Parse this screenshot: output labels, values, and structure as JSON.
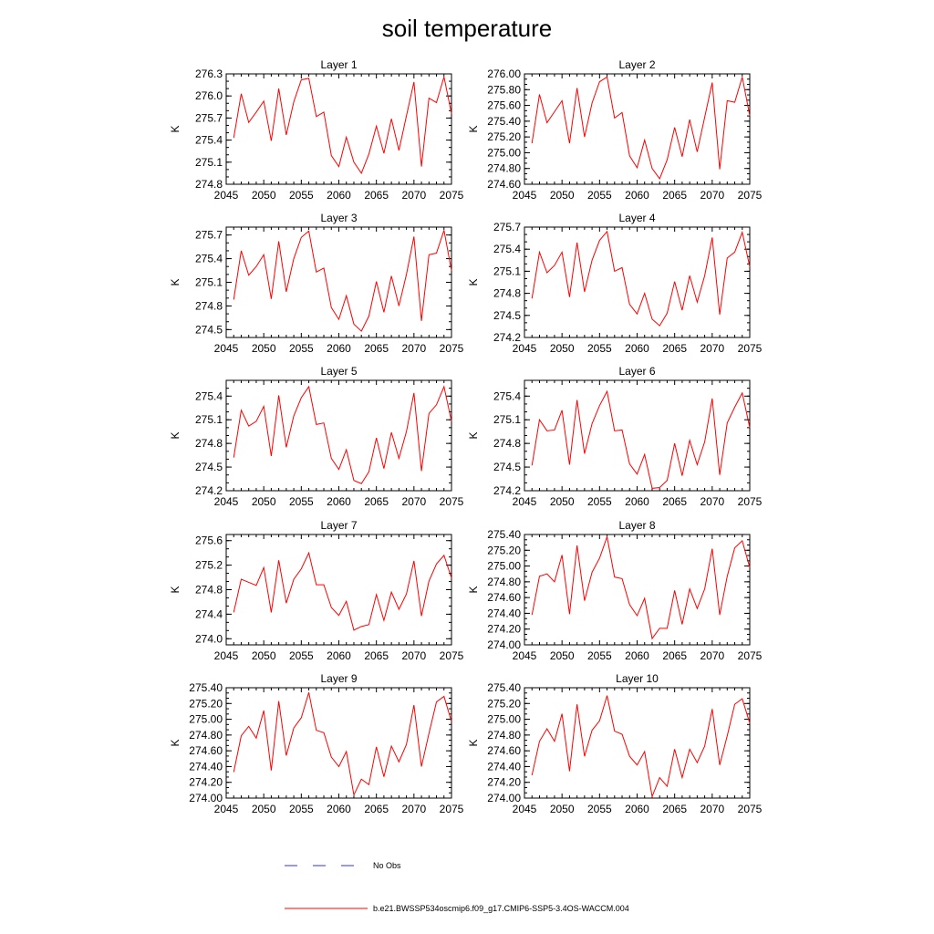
{
  "figure_title": "soil temperature",
  "legend": [
    {
      "label": "No Obs",
      "color": "#3333cc",
      "style": "dashed"
    },
    {
      "label": "b.e21.BWSSP534oscmip6.f09_g17.CMIP6-SSP5-3.4OS-WACCM.004",
      "color": "#ff0000",
      "style": "solid"
    }
  ],
  "chart_data": [
    {
      "type": "line",
      "title": "Layer 1",
      "ylabel": "K",
      "xlim": [
        2045,
        2075
      ],
      "ylim": [
        274.8,
        276.3
      ],
      "xticks": [
        2045,
        2050,
        2055,
        2060,
        2065,
        2070,
        2075
      ],
      "yticks": [
        274.8,
        275.1,
        275.4,
        275.7,
        276.0,
        276.3
      ],
      "ydecimals": 1,
      "x": [
        2046,
        2047,
        2048,
        2049,
        2050,
        2051,
        2052,
        2053,
        2054,
        2055,
        2056,
        2057,
        2058,
        2059,
        2060,
        2061,
        2062,
        2063,
        2064,
        2065,
        2066,
        2067,
        2068,
        2069,
        2070,
        2071,
        2072,
        2073,
        2074,
        2075
      ],
      "series": [
        {
          "values": [
            275.43,
            276.03,
            275.64,
            275.78,
            275.93,
            275.39,
            276.1,
            275.47,
            275.92,
            276.22,
            276.24,
            275.72,
            275.78,
            275.19,
            275.04,
            275.44,
            275.1,
            274.95,
            275.21,
            275.59,
            275.22,
            275.69,
            275.26,
            275.73,
            276.19,
            275.04,
            275.97,
            275.91,
            276.26,
            275.76
          ],
          "color": "#ff0000"
        }
      ]
    },
    {
      "type": "line",
      "title": "Layer 2",
      "ylabel": "K",
      "xlim": [
        2045,
        2075
      ],
      "ylim": [
        274.6,
        276.0
      ],
      "xticks": [
        2045,
        2050,
        2055,
        2060,
        2065,
        2070,
        2075
      ],
      "yticks": [
        274.6,
        274.8,
        275.0,
        275.2,
        275.4,
        275.6,
        275.8,
        276.0
      ],
      "ydecimals": 2,
      "x": [
        2046,
        2047,
        2048,
        2049,
        2050,
        2051,
        2052,
        2053,
        2054,
        2055,
        2056,
        2057,
        2058,
        2059,
        2060,
        2061,
        2062,
        2063,
        2064,
        2065,
        2066,
        2067,
        2068,
        2069,
        2070,
        2071,
        2072,
        2073,
        2074,
        2075
      ],
      "series": [
        {
          "values": [
            275.12,
            275.74,
            275.38,
            275.52,
            275.66,
            275.12,
            275.82,
            275.2,
            275.63,
            275.9,
            275.96,
            275.44,
            275.51,
            274.96,
            274.81,
            275.16,
            274.8,
            274.67,
            274.91,
            275.32,
            274.95,
            275.42,
            275.01,
            275.45,
            275.89,
            274.79,
            275.66,
            275.64,
            275.96,
            275.47
          ],
          "color": "#ff0000"
        }
      ]
    },
    {
      "type": "line",
      "title": "Layer 3",
      "ylabel": "K",
      "xlim": [
        2045,
        2075
      ],
      "ylim": [
        274.4,
        275.8
      ],
      "xticks": [
        2045,
        2050,
        2055,
        2060,
        2065,
        2070,
        2075
      ],
      "yticks": [
        274.5,
        274.8,
        275.1,
        275.4,
        275.7
      ],
      "ydecimals": 1,
      "x": [
        2046,
        2047,
        2048,
        2049,
        2050,
        2051,
        2052,
        2053,
        2054,
        2055,
        2056,
        2057,
        2058,
        2059,
        2060,
        2061,
        2062,
        2063,
        2064,
        2065,
        2066,
        2067,
        2068,
        2069,
        2070,
        2071,
        2072,
        2073,
        2074,
        2075
      ],
      "series": [
        {
          "values": [
            274.88,
            275.5,
            275.19,
            275.3,
            275.45,
            274.89,
            275.62,
            274.98,
            275.4,
            275.67,
            275.75,
            275.23,
            275.28,
            274.78,
            274.63,
            274.93,
            274.57,
            274.48,
            274.67,
            275.11,
            274.72,
            275.18,
            274.8,
            275.2,
            275.68,
            274.61,
            275.45,
            275.47,
            275.76,
            275.25
          ],
          "color": "#ff0000"
        }
      ]
    },
    {
      "type": "line",
      "title": "Layer 4",
      "ylabel": "K",
      "xlim": [
        2045,
        2075
      ],
      "ylim": [
        274.2,
        275.7
      ],
      "xticks": [
        2045,
        2050,
        2055,
        2060,
        2065,
        2070,
        2075
      ],
      "yticks": [
        274.2,
        274.5,
        274.8,
        275.1,
        275.4,
        275.7
      ],
      "ydecimals": 1,
      "x": [
        2046,
        2047,
        2048,
        2049,
        2050,
        2051,
        2052,
        2053,
        2054,
        2055,
        2056,
        2057,
        2058,
        2059,
        2060,
        2061,
        2062,
        2063,
        2064,
        2065,
        2066,
        2067,
        2068,
        2069,
        2070,
        2071,
        2072,
        2073,
        2074,
        2075
      ],
      "series": [
        {
          "values": [
            274.73,
            275.36,
            275.08,
            275.18,
            275.36,
            274.75,
            275.49,
            274.82,
            275.25,
            275.52,
            275.64,
            275.1,
            275.15,
            274.65,
            274.52,
            274.8,
            274.45,
            274.36,
            274.53,
            274.96,
            274.57,
            275.04,
            274.68,
            275.04,
            275.56,
            274.51,
            275.28,
            275.36,
            275.63,
            275.16
          ],
          "color": "#ff0000"
        }
      ]
    },
    {
      "type": "line",
      "title": "Layer 5",
      "ylabel": "K",
      "xlim": [
        2045,
        2075
      ],
      "ylim": [
        274.2,
        275.6
      ],
      "xticks": [
        2045,
        2050,
        2055,
        2060,
        2065,
        2070,
        2075
      ],
      "yticks": [
        274.2,
        274.5,
        274.8,
        275.1,
        275.4
      ],
      "ydecimals": 1,
      "x": [
        2046,
        2047,
        2048,
        2049,
        2050,
        2051,
        2052,
        2053,
        2054,
        2055,
        2056,
        2057,
        2058,
        2059,
        2060,
        2061,
        2062,
        2063,
        2064,
        2065,
        2066,
        2067,
        2068,
        2069,
        2070,
        2071,
        2072,
        2073,
        2074,
        2075
      ],
      "series": [
        {
          "values": [
            274.62,
            275.22,
            275.02,
            275.08,
            275.27,
            274.64,
            275.41,
            274.75,
            275.15,
            275.38,
            275.52,
            275.04,
            275.06,
            274.61,
            274.47,
            274.72,
            274.33,
            274.29,
            274.44,
            274.87,
            274.48,
            274.94,
            274.61,
            274.95,
            275.44,
            274.45,
            275.18,
            275.29,
            275.52,
            275.08
          ],
          "color": "#ff0000"
        }
      ]
    },
    {
      "type": "line",
      "title": "Layer 6",
      "ylabel": "K",
      "xlim": [
        2045,
        2075
      ],
      "ylim": [
        274.2,
        275.6
      ],
      "xticks": [
        2045,
        2050,
        2055,
        2060,
        2065,
        2070,
        2075
      ],
      "yticks": [
        274.2,
        274.5,
        274.8,
        275.1,
        275.4
      ],
      "ydecimals": 1,
      "x": [
        2046,
        2047,
        2048,
        2049,
        2050,
        2051,
        2052,
        2053,
        2054,
        2055,
        2056,
        2057,
        2058,
        2059,
        2060,
        2061,
        2062,
        2063,
        2064,
        2065,
        2066,
        2067,
        2068,
        2069,
        2070,
        2071,
        2072,
        2073,
        2074,
        2075
      ],
      "series": [
        {
          "values": [
            274.52,
            275.1,
            274.96,
            274.97,
            275.22,
            274.53,
            275.35,
            274.67,
            275.05,
            275.28,
            275.46,
            274.96,
            274.97,
            274.54,
            274.41,
            274.66,
            274.23,
            274.24,
            274.33,
            274.8,
            274.39,
            274.84,
            274.53,
            274.82,
            275.37,
            274.4,
            275.06,
            275.26,
            275.44,
            275.0
          ],
          "color": "#ff0000"
        }
      ]
    },
    {
      "type": "line",
      "title": "Layer 7",
      "ylabel": "K",
      "xlim": [
        2045,
        2075
      ],
      "ylim": [
        273.9,
        275.7
      ],
      "xticks": [
        2045,
        2050,
        2055,
        2060,
        2065,
        2070,
        2075
      ],
      "yticks": [
        274.0,
        274.4,
        274.8,
        275.2,
        275.6
      ],
      "ydecimals": 1,
      "x": [
        2046,
        2047,
        2048,
        2049,
        2050,
        2051,
        2052,
        2053,
        2054,
        2055,
        2056,
        2057,
        2058,
        2059,
        2060,
        2061,
        2062,
        2063,
        2064,
        2065,
        2066,
        2067,
        2068,
        2069,
        2070,
        2071,
        2072,
        2073,
        2074,
        2075
      ],
      "series": [
        {
          "values": [
            274.43,
            274.97,
            274.92,
            274.87,
            275.16,
            274.43,
            275.28,
            274.58,
            274.97,
            275.14,
            275.4,
            274.88,
            274.88,
            274.51,
            274.38,
            274.61,
            274.14,
            274.2,
            274.23,
            274.72,
            274.3,
            274.76,
            274.48,
            274.73,
            275.27,
            274.37,
            274.94,
            275.22,
            275.36,
            274.99
          ],
          "color": "#ff0000"
        }
      ]
    },
    {
      "type": "line",
      "title": "Layer 8",
      "ylabel": "K",
      "xlim": [
        2045,
        2075
      ],
      "ylim": [
        274.0,
        275.4
      ],
      "xticks": [
        2045,
        2050,
        2055,
        2060,
        2065,
        2070,
        2075
      ],
      "yticks": [
        274.0,
        274.2,
        274.4,
        274.6,
        274.8,
        275.0,
        275.2,
        275.4
      ],
      "ydecimals": 2,
      "x": [
        2046,
        2047,
        2048,
        2049,
        2050,
        2051,
        2052,
        2053,
        2054,
        2055,
        2056,
        2057,
        2058,
        2059,
        2060,
        2061,
        2062,
        2063,
        2064,
        2065,
        2066,
        2067,
        2068,
        2069,
        2070,
        2071,
        2072,
        2073,
        2074,
        2075
      ],
      "series": [
        {
          "values": [
            274.38,
            274.87,
            274.9,
            274.8,
            275.14,
            274.39,
            275.26,
            274.56,
            274.92,
            275.1,
            275.37,
            274.86,
            274.84,
            274.51,
            274.37,
            274.59,
            274.08,
            274.21,
            274.21,
            274.69,
            274.26,
            274.71,
            274.46,
            274.71,
            275.22,
            274.38,
            274.87,
            275.23,
            275.32,
            274.98
          ],
          "color": "#ff0000"
        }
      ]
    },
    {
      "type": "line",
      "title": "Layer 9",
      "ylabel": "K",
      "xlim": [
        2045,
        2075
      ],
      "ylim": [
        274.0,
        275.4
      ],
      "xticks": [
        2045,
        2050,
        2055,
        2060,
        2065,
        2070,
        2075
      ],
      "yticks": [
        274.0,
        274.2,
        274.4,
        274.6,
        274.8,
        275.0,
        275.2,
        275.4
      ],
      "ydecimals": 2,
      "x": [
        2046,
        2047,
        2048,
        2049,
        2050,
        2051,
        2052,
        2053,
        2054,
        2055,
        2056,
        2057,
        2058,
        2059,
        2060,
        2061,
        2062,
        2063,
        2064,
        2065,
        2066,
        2067,
        2068,
        2069,
        2070,
        2071,
        2072,
        2073,
        2074,
        2075
      ],
      "series": [
        {
          "values": [
            274.33,
            274.79,
            274.91,
            274.76,
            275.11,
            274.35,
            275.23,
            274.54,
            274.89,
            275.02,
            275.34,
            274.86,
            274.83,
            274.52,
            274.4,
            274.59,
            274.04,
            274.24,
            274.17,
            274.65,
            274.27,
            274.66,
            274.46,
            274.68,
            275.18,
            274.4,
            274.82,
            275.22,
            275.29,
            274.97
          ],
          "color": "#ff0000"
        }
      ]
    },
    {
      "type": "line",
      "title": "Layer 10",
      "ylabel": "K",
      "xlim": [
        2045,
        2075
      ],
      "ylim": [
        274.0,
        275.4
      ],
      "xticks": [
        2045,
        2050,
        2055,
        2060,
        2065,
        2070,
        2075
      ],
      "yticks": [
        274.0,
        274.2,
        274.4,
        274.6,
        274.8,
        275.0,
        275.2,
        275.4
      ],
      "ydecimals": 2,
      "x": [
        2046,
        2047,
        2048,
        2049,
        2050,
        2051,
        2052,
        2053,
        2054,
        2055,
        2056,
        2057,
        2058,
        2059,
        2060,
        2061,
        2062,
        2063,
        2064,
        2065,
        2066,
        2067,
        2068,
        2069,
        2070,
        2071,
        2072,
        2073,
        2074,
        2075
      ],
      "series": [
        {
          "values": [
            274.29,
            274.72,
            274.88,
            274.72,
            275.07,
            274.34,
            275.19,
            274.53,
            274.86,
            274.98,
            275.3,
            274.85,
            274.81,
            274.53,
            274.42,
            274.59,
            274.02,
            274.26,
            274.15,
            274.62,
            274.26,
            274.62,
            274.45,
            274.66,
            275.13,
            274.42,
            274.79,
            275.19,
            275.26,
            274.95
          ],
          "color": "#ff0000"
        }
      ]
    }
  ]
}
